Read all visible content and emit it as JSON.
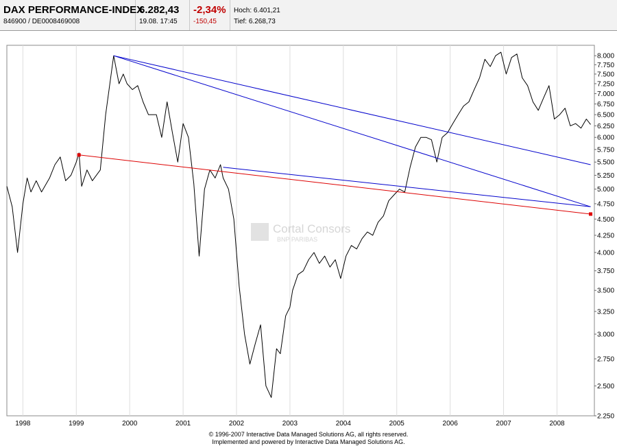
{
  "header": {
    "name": "DAX PERFORMANCE-INDEX",
    "id_line": "846900  /  DE0008469008",
    "price": "6.282,43",
    "datetime": "19.08. 17:45",
    "change_pct": "-2,34%",
    "change_abs": "-150,45",
    "high": "Hoch: 6.401,21",
    "low": "Tief: 6.268,73"
  },
  "watermark": {
    "brand": "Cortal Consors",
    "sub": "BNP PARIBAS"
  },
  "footer": {
    "line1": "© 1996-2007 Interactive Data Managed Solutions AG, all rights reserved.",
    "line2": "Implemented and powered by Interactive Data Managed Solutions AG."
  },
  "colors": {
    "price": "#000000",
    "trend_blue": "#0000cc",
    "trend_red": "#dd0000"
  },
  "chart_data": {
    "type": "line",
    "title": "DAX PERFORMANCE-INDEX",
    "xlabel": "",
    "ylabel": "",
    "scale": "log",
    "xlim": [
      1997.7,
      2008.7
    ],
    "ylim": [
      2250,
      8300
    ],
    "x_ticks": [
      "1998",
      "1999",
      "2000",
      "2001",
      "2002",
      "2003",
      "2004",
      "2005",
      "2006",
      "2007",
      "2008"
    ],
    "x_tick_values": [
      1998,
      1999,
      2000,
      2001,
      2002,
      2003,
      2004,
      2005,
      2006,
      2007,
      2008
    ],
    "y_ticks": [
      "8.000",
      "7.750",
      "7.500",
      "7.250",
      "7.000",
      "6.750",
      "6.500",
      "6.250",
      "6.000",
      "5.750",
      "5.500",
      "5.250",
      "5.000",
      "4.750",
      "4.500",
      "4.250",
      "4.000",
      "3.750",
      "3.500",
      "3.250",
      "3.000",
      "2.750",
      "2.500",
      "2.250"
    ],
    "y_tick_values": [
      8000,
      7750,
      7500,
      7250,
      7000,
      6750,
      6500,
      6250,
      6000,
      5750,
      5500,
      5250,
      5000,
      4750,
      4500,
      4250,
      4000,
      3750,
      3500,
      3250,
      3000,
      2750,
      2500,
      2250
    ],
    "series": [
      {
        "name": "DAX",
        "x": [
          1997.7,
          1997.8,
          1997.9,
          1998.0,
          1998.08,
          1998.15,
          1998.25,
          1998.35,
          1998.5,
          1998.6,
          1998.7,
          1998.8,
          1998.9,
          1999.0,
          1999.05,
          1999.1,
          1999.2,
          1999.3,
          1999.45,
          1999.55,
          1999.7,
          1999.8,
          1999.88,
          1999.95,
          2000.05,
          2000.15,
          2000.25,
          2000.35,
          2000.5,
          2000.6,
          2000.7,
          2000.8,
          2000.9,
          2001.0,
          2001.1,
          2001.2,
          2001.3,
          2001.4,
          2001.5,
          2001.6,
          2001.7,
          2001.75,
          2001.85,
          2001.95,
          2002.05,
          2002.15,
          2002.25,
          2002.35,
          2002.45,
          2002.55,
          2002.65,
          2002.75,
          2002.82,
          2002.92,
          2003.0,
          2003.05,
          2003.15,
          2003.25,
          2003.35,
          2003.45,
          2003.55,
          2003.65,
          2003.75,
          2003.85,
          2003.95,
          2004.05,
          2004.15,
          2004.25,
          2004.35,
          2004.45,
          2004.55,
          2004.65,
          2004.75,
          2004.85,
          2004.95,
          2005.05,
          2005.15,
          2005.25,
          2005.35,
          2005.45,
          2005.55,
          2005.65,
          2005.75,
          2005.85,
          2005.95,
          2006.05,
          2006.15,
          2006.25,
          2006.35,
          2006.45,
          2006.55,
          2006.65,
          2006.75,
          2006.85,
          2006.95,
          2007.05,
          2007.15,
          2007.25,
          2007.35,
          2007.45,
          2007.55,
          2007.65,
          2007.75,
          2007.85,
          2007.95,
          2008.05,
          2008.15,
          2008.25,
          2008.35,
          2008.45,
          2008.55,
          2008.63
        ],
        "y": [
          5050,
          4700,
          4000,
          4750,
          5200,
          4950,
          5150,
          4950,
          5200,
          5450,
          5600,
          5150,
          5250,
          5500,
          5680,
          5050,
          5350,
          5150,
          5350,
          6500,
          8000,
          7250,
          7500,
          7250,
          7100,
          7200,
          6800,
          6500,
          6500,
          6000,
          6800,
          6100,
          5500,
          6300,
          6000,
          5100,
          3950,
          5000,
          5350,
          5200,
          5450,
          5200,
          5000,
          4500,
          3550,
          3000,
          2700,
          2900,
          3100,
          2500,
          2400,
          2850,
          2800,
          3200,
          3300,
          3500,
          3700,
          3750,
          3900,
          4000,
          3850,
          3950,
          3800,
          3900,
          3650,
          3950,
          4100,
          4050,
          4200,
          4300,
          4250,
          4450,
          4550,
          4800,
          4900,
          5000,
          4950,
          5400,
          5800,
          6000,
          6000,
          5950,
          5500,
          6000,
          6100,
          6300,
          6500,
          6700,
          6800,
          7100,
          7400,
          7900,
          7700,
          8000,
          8100,
          7500,
          7950,
          8050,
          7400,
          7200,
          6800,
          6600,
          6900,
          7200,
          6400,
          6500,
          6650,
          6250,
          6300,
          6200,
          6400,
          6280
        ]
      },
      {
        "name": "Trendline 1 (blue)",
        "x": [
          1999.7,
          2008.63
        ],
        "y": [
          8000,
          5450
        ]
      },
      {
        "name": "Trendline 2 (blue)",
        "x": [
          1999.7,
          2008.63
        ],
        "y": [
          8000,
          4700
        ]
      },
      {
        "name": "Trendline 3 (blue)",
        "x": [
          2001.75,
          2008.63
        ],
        "y": [
          5400,
          4700
        ]
      },
      {
        "name": "Trendline 4 (red)",
        "x": [
          1999.05,
          2008.63
        ],
        "y": [
          5640,
          4580
        ]
      }
    ]
  }
}
